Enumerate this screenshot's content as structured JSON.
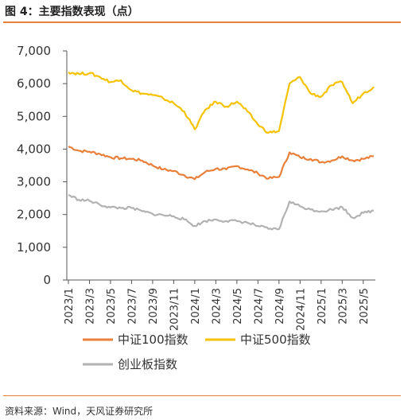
{
  "title": "图 4：主要指数表现（点）",
  "source": "资料来源：Wind，天风证券研究所",
  "chart_data": {
    "type": "line",
    "ylim": [
      0,
      7000
    ],
    "yticks": [
      "7,000",
      "6,000",
      "5,000",
      "4,000",
      "3,000",
      "2,000",
      "1,000",
      "0"
    ],
    "ytick_values": [
      7000,
      6000,
      5000,
      4000,
      3000,
      2000,
      1000,
      0
    ],
    "xticks": [
      "2023/1",
      "2023/3",
      "2023/5",
      "2023/7",
      "2023/9",
      "2023/11",
      "2024/1",
      "2024/3",
      "2024/5",
      "2024/7",
      "2024/9",
      "2024/11",
      "2025/1",
      "2025/3",
      "2025/5"
    ],
    "x": [
      "2023/1",
      "2023/2",
      "2023/3",
      "2023/4",
      "2023/5",
      "2023/6",
      "2023/7",
      "2023/8",
      "2023/9",
      "2023/10",
      "2023/11",
      "2023/12",
      "2024/1",
      "2024/2",
      "2024/3",
      "2024/4",
      "2024/5",
      "2024/6",
      "2024/7",
      "2024/8",
      "2024/9",
      "2024/10",
      "2024/11",
      "2024/12",
      "2025/1",
      "2025/2",
      "2025/3",
      "2025/4",
      "2025/5",
      "2025/6"
    ],
    "legend_position": "bottom",
    "series": [
      {
        "name": "中证100指数",
        "color": "#E8803A",
        "values": [
          4080,
          3950,
          3920,
          3850,
          3750,
          3720,
          3700,
          3650,
          3500,
          3380,
          3330,
          3200,
          3080,
          3300,
          3400,
          3380,
          3480,
          3380,
          3260,
          3100,
          3150,
          3900,
          3750,
          3700,
          3600,
          3650,
          3780,
          3650,
          3700,
          3780
        ]
      },
      {
        "name": "中证500指数",
        "color": "#F5C200",
        "values": [
          6350,
          6300,
          6320,
          6200,
          6050,
          6100,
          5800,
          5700,
          5650,
          5550,
          5400,
          5150,
          4600,
          5200,
          5450,
          5300,
          5450,
          5150,
          4750,
          4500,
          4550,
          6000,
          6200,
          5700,
          5600,
          5950,
          6050,
          5400,
          5700,
          5900
        ]
      },
      {
        "name": "创业板指数",
        "color": "#B2B2B2",
        "values": [
          2600,
          2450,
          2420,
          2300,
          2220,
          2200,
          2200,
          2100,
          2020,
          1980,
          1950,
          1850,
          1650,
          1800,
          1850,
          1800,
          1800,
          1750,
          1650,
          1560,
          1550,
          2400,
          2250,
          2150,
          2100,
          2150,
          2230,
          1900,
          2050,
          2120
        ]
      }
    ]
  }
}
